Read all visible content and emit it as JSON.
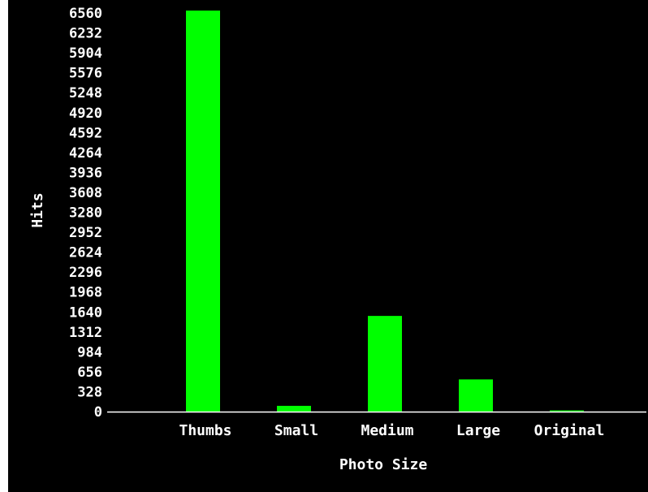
{
  "chart_data": {
    "type": "bar",
    "xlabel": "Photo Size",
    "ylabel": "Hits",
    "categories": [
      "Thumbs",
      "Small",
      "Medium",
      "Large",
      "Original"
    ],
    "values": [
      6600,
      95,
      1575,
      530,
      20
    ],
    "ylim": [
      0,
      6560
    ],
    "yticks": [
      "0",
      "328",
      "656",
      "984",
      "1312",
      "1640",
      "1968",
      "2296",
      "2624",
      "2952",
      "3280",
      "3608",
      "3936",
      "4264",
      "4592",
      "4920",
      "5248",
      "5576",
      "5904",
      "6232",
      "6560"
    ],
    "grid": false,
    "legend": "none",
    "colors": {
      "background": "#000000",
      "bar": "#00ff00",
      "text": "#ffffff",
      "axis": "#ffffff"
    }
  }
}
